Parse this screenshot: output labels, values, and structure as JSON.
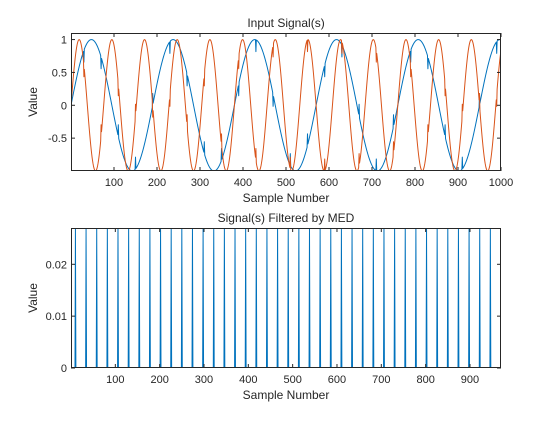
{
  "chart_data": [
    {
      "type": "line",
      "title": "Input Signal(s)",
      "xlabel": "Sample Number",
      "ylabel": "Value",
      "xlim": [
        0,
        1000
      ],
      "ylim": [
        -1,
        1.1
      ],
      "xticks": [
        100,
        200,
        300,
        400,
        500,
        600,
        700,
        800,
        900,
        1000
      ],
      "yticks": [
        -0.5,
        0,
        0.5,
        1
      ],
      "ytick_labels": [
        "-0.5",
        "0",
        "0.5",
        "1"
      ],
      "grid": false,
      "series": [
        {
          "color": "#0072BD",
          "signal": "sine",
          "period": 190,
          "amplitude": 1,
          "phase_offset_samples": 0,
          "spike_every": 40,
          "spike_start": 30,
          "spike_size": 0.18
        },
        {
          "color": "#D95319",
          "signal": "sine",
          "period": 76,
          "amplitude": 1,
          "phase_offset_samples": 0,
          "spike_every": 40,
          "spike_start": 30,
          "spike_size": 0.18
        }
      ]
    },
    {
      "type": "line",
      "title": "Signal(s) Filtered by MED",
      "xlabel": "Sample Number",
      "ylabel": "Value",
      "xlim": [
        0,
        970
      ],
      "ylim": [
        0,
        0.027
      ],
      "xticks": [
        100,
        200,
        300,
        400,
        500,
        600,
        700,
        800,
        900
      ],
      "yticks": [
        0,
        0.01,
        0.02
      ],
      "ytick_labels": [
        "0",
        "0.01",
        "0.02"
      ],
      "grid": false,
      "series": [
        {
          "color": "#0072BD",
          "signal": "impulse_train",
          "first_impulse": 10,
          "spacing": 24,
          "impulse_value": 0.027,
          "baseline_value": 0
        }
      ]
    }
  ]
}
